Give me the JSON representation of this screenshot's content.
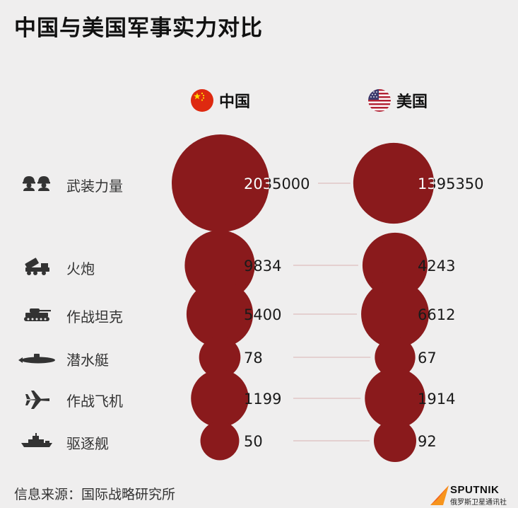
{
  "title": "中国与美国军事实力对比",
  "columns": {
    "china": "中国",
    "usa": "美国"
  },
  "icons": [
    "soldiers-icon",
    "artillery-icon",
    "tank-icon",
    "submarine-icon",
    "fighter-jet-icon",
    "destroyer-icon"
  ],
  "colors": {
    "circle": "#8a1a1c",
    "background": "#efeeee",
    "connector": "#d9b1b1",
    "china_red": "#de2910",
    "china_yellow": "#ffde00",
    "usa_blue": "#3c3b6e",
    "usa_red": "#b22234",
    "logo_orange": "#f7941d"
  },
  "chart_data": {
    "type": "bubble",
    "title": "中国与美国军事实力对比",
    "categories": [
      "武装力量",
      "火炮",
      "作战坦克",
      "潜水艇",
      "作战飞机",
      "驱逐舰"
    ],
    "series": [
      {
        "name": "中国",
        "values": [
          2035000,
          9834,
          5400,
          78,
          1199,
          50
        ]
      },
      {
        "name": "美国",
        "values": [
          1395350,
          4243,
          6612,
          67,
          1914,
          92
        ]
      }
    ],
    "value_labels": {
      "中国": [
        "2035000",
        "9834",
        "5400",
        "78",
        "1199",
        "50"
      ],
      "美国": [
        "1395350",
        "4243",
        "6612",
        "67",
        "1914",
        "92"
      ]
    }
  },
  "footer": {
    "source": "信息来源：国际战略研究所",
    "brand": "SPUTNIK",
    "brand_sub": "俄罗斯卫星通讯社"
  }
}
